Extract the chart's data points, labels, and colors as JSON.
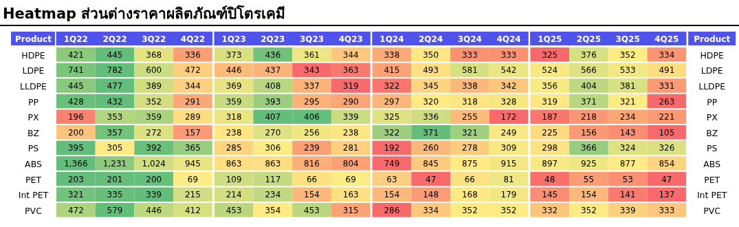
{
  "chart_data": {
    "type": "heatmap",
    "title": "Heatmap ส่วนต่างราคาผลิตภัณฑ์ปิโตรเคมี",
    "ylabel": "Product",
    "y2label": "Product",
    "categories": [
      "1Q22",
      "2Q22",
      "3Q22",
      "4Q22",
      "1Q23",
      "2Q23",
      "3Q23",
      "4Q23",
      "1Q24",
      "2Q24",
      "3Q24",
      "4Q24",
      "1Q25",
      "2Q25",
      "3Q25",
      "4Q25"
    ],
    "y_categories": [
      "HDPE",
      "LDPE",
      "LLDPE",
      "PP",
      "PX",
      "BZ",
      "PS",
      "ABS",
      "PET",
      "Int PET",
      "PVC"
    ],
    "y2_categories": [
      "HDPE",
      "LDPE",
      "LLDPE",
      "PP",
      "PX",
      "BZ",
      "PS",
      "ABS",
      "PET",
      "Int PET",
      "PVC"
    ],
    "colors": [
      "#f8696b",
      "#ffeb84",
      "#63be7b"
    ],
    "cells": [
      [
        421,
        445,
        368,
        336,
        373,
        436,
        361,
        344,
        338,
        350,
        333,
        333,
        325,
        376,
        352,
        334
      ],
      [
        741,
        782,
        600,
        472,
        446,
        437,
        343,
        363,
        415,
        493,
        581,
        542,
        524,
        566,
        533,
        491
      ],
      [
        445,
        477,
        389,
        344,
        369,
        408,
        337,
        319,
        322,
        345,
        338,
        342,
        356,
        404,
        381,
        331
      ],
      [
        428,
        432,
        352,
        291,
        359,
        393,
        295,
        290,
        297,
        320,
        318,
        328,
        319,
        371,
        321,
        263
      ],
      [
        196,
        353,
        359,
        289,
        318,
        407,
        406,
        339,
        325,
        336,
        255,
        172,
        187,
        218,
        234,
        221
      ],
      [
        200,
        357,
        272,
        157,
        238,
        270,
        256,
        238,
        322,
        371,
        321,
        249,
        225,
        156,
        143,
        105
      ],
      [
        395,
        305,
        392,
        365,
        285,
        306,
        239,
        281,
        192,
        260,
        278,
        309,
        298,
        366,
        324,
        326
      ],
      [
        1366,
        1231,
        1024,
        945,
        863,
        863,
        816,
        804,
        749,
        845,
        875,
        915,
        897,
        925,
        877,
        854
      ],
      [
        203,
        201,
        200,
        69,
        109,
        117,
        66,
        69,
        63,
        47,
        66,
        81,
        48,
        55,
        53,
        47
      ],
      [
        321,
        335,
        339,
        215,
        214,
        234,
        154,
        163,
        154,
        148,
        168,
        179,
        145,
        154,
        141,
        137
      ],
      [
        472,
        579,
        446,
        412,
        453,
        354,
        453,
        315,
        286,
        334,
        352,
        352,
        332,
        352,
        339,
        333
      ]
    ],
    "cell_labels": [
      [
        "421",
        "445",
        "368",
        "336",
        "373",
        "436",
        "361",
        "344",
        "338",
        "350",
        "333",
        "333",
        "325",
        "376",
        "352",
        "334"
      ],
      [
        "741",
        "782",
        "600",
        "472",
        "446",
        "437",
        "343",
        "363",
        "415",
        "493",
        "581",
        "542",
        "524",
        "566",
        "533",
        "491"
      ],
      [
        "445",
        "477",
        "389",
        "344",
        "369",
        "408",
        "337",
        "319",
        "322",
        "345",
        "338",
        "342",
        "356",
        "404",
        "381",
        "331"
      ],
      [
        "428",
        "432",
        "352",
        "291",
        "359",
        "393",
        "295",
        "290",
        "297",
        "320",
        "318",
        "328",
        "319",
        "371",
        "321",
        "263"
      ],
      [
        "196",
        "353",
        "359",
        "289",
        "318",
        "407",
        "406",
        "339",
        "325",
        "336",
        "255",
        "172",
        "187",
        "218",
        "234",
        "221"
      ],
      [
        "200",
        "357",
        "272",
        "157",
        "238",
        "270",
        "256",
        "238",
        "322",
        "371",
        "321",
        "249",
        "225",
        "156",
        "143",
        "105"
      ],
      [
        "395",
        "305",
        "392",
        "365",
        "285",
        "306",
        "239",
        "281",
        "192",
        "260",
        "278",
        "309",
        "298",
        "366",
        "324",
        "326"
      ],
      [
        "1,366",
        "1,231",
        "1,024",
        "945",
        "863",
        "863",
        "816",
        "804",
        "749",
        "845",
        "875",
        "915",
        "897",
        "925",
        "877",
        "854"
      ],
      [
        "203",
        "201",
        "200",
        "69",
        "109",
        "117",
        "66",
        "69",
        "63",
        "47",
        "66",
        "81",
        "48",
        "55",
        "53",
        "47"
      ],
      [
        "321",
        "335",
        "339",
        "215",
        "214",
        "234",
        "154",
        "163",
        "154",
        "148",
        "168",
        "179",
        "145",
        "154",
        "141",
        "137"
      ],
      [
        "472",
        "579",
        "446",
        "412",
        "453",
        "354",
        "453",
        "315",
        "286",
        "334",
        "352",
        "352",
        "332",
        "352",
        "339",
        "333"
      ]
    ],
    "data_labels": true
  }
}
